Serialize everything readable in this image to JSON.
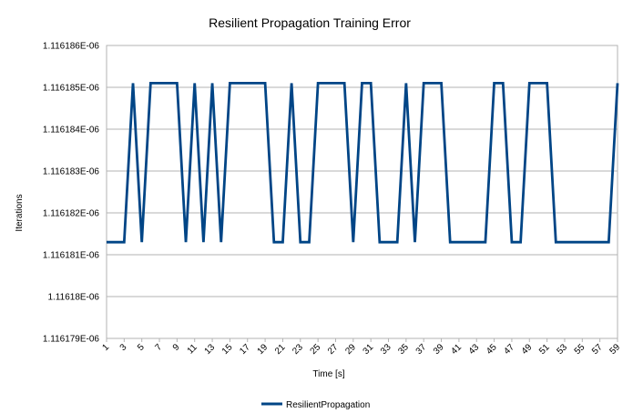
{
  "chart_data": {
    "type": "line",
    "title": "Resilient Propagation Training Error",
    "xlabel": "Time [s]",
    "ylabel": "Iterations",
    "x_tick_labels": [
      "1",
      "3",
      "5",
      "7",
      "9",
      "11",
      "13",
      "15",
      "17",
      "19",
      "21",
      "23",
      "25",
      "27",
      "29",
      "31",
      "33",
      "35",
      "37",
      "39",
      "41",
      "43",
      "45",
      "47",
      "49",
      "51",
      "53",
      "55",
      "57",
      "59"
    ],
    "y_tick_labels": [
      "1.116186E-06",
      "1.116185E-06",
      "1.116184E-06",
      "1.116183E-06",
      "1.116182E-06",
      "1.116181E-06",
      "1.11618E-06",
      "1.116179E-06"
    ],
    "ylim": [
      1.116179e-06,
      1.116186e-06
    ],
    "xlim": [
      1,
      59
    ],
    "grid": true,
    "legend_position": "bottom",
    "series": [
      {
        "name": "ResilientPropagation",
        "color": "#004586",
        "x": [
          1,
          2,
          3,
          4,
          5,
          6,
          7,
          8,
          9,
          10,
          11,
          12,
          13,
          14,
          15,
          16,
          17,
          18,
          19,
          20,
          21,
          22,
          23,
          24,
          25,
          26,
          27,
          28,
          29,
          30,
          31,
          32,
          33,
          34,
          35,
          36,
          37,
          38,
          39,
          40,
          41,
          42,
          43,
          44,
          45,
          46,
          47,
          48,
          49,
          50,
          51,
          52,
          53,
          54,
          55,
          56,
          57,
          58,
          59
        ],
        "y": [
          1.1161813e-06,
          1.1161813e-06,
          1.1161813e-06,
          1.1161851e-06,
          1.1161813e-06,
          1.1161851e-06,
          1.1161851e-06,
          1.1161851e-06,
          1.1161851e-06,
          1.1161813e-06,
          1.1161851e-06,
          1.1161813e-06,
          1.1161851e-06,
          1.1161813e-06,
          1.1161851e-06,
          1.1161851e-06,
          1.1161851e-06,
          1.1161851e-06,
          1.1161851e-06,
          1.1161813e-06,
          1.1161813e-06,
          1.1161851e-06,
          1.1161813e-06,
          1.1161813e-06,
          1.1161851e-06,
          1.1161851e-06,
          1.1161851e-06,
          1.1161851e-06,
          1.1161813e-06,
          1.1161851e-06,
          1.1161851e-06,
          1.1161813e-06,
          1.1161813e-06,
          1.1161813e-06,
          1.1161851e-06,
          1.1161813e-06,
          1.1161851e-06,
          1.1161851e-06,
          1.1161851e-06,
          1.1161813e-06,
          1.1161813e-06,
          1.1161813e-06,
          1.1161813e-06,
          1.1161813e-06,
          1.1161851e-06,
          1.1161851e-06,
          1.1161813e-06,
          1.1161813e-06,
          1.1161851e-06,
          1.1161851e-06,
          1.1161851e-06,
          1.1161813e-06,
          1.1161813e-06,
          1.1161813e-06,
          1.1161813e-06,
          1.1161813e-06,
          1.1161813e-06,
          1.1161813e-06,
          1.1161851e-06
        ]
      }
    ]
  }
}
